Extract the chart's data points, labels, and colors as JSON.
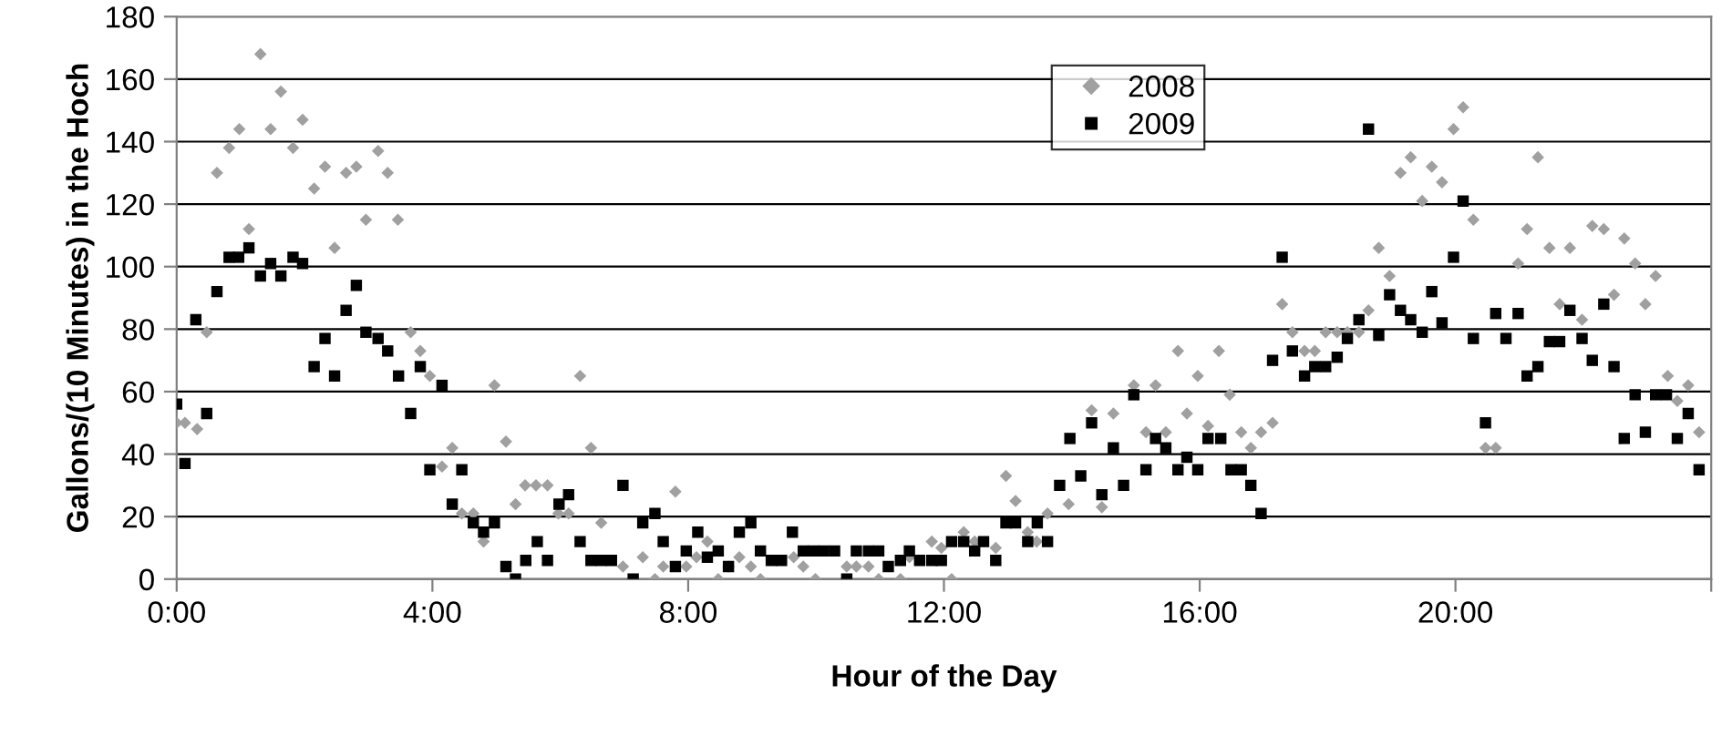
{
  "chart_data": {
    "type": "scatter",
    "xlabel": "Hour of the Day",
    "ylabel": "Gallons/(10 Minutes) in the Hoch",
    "xlim": [
      0,
      24
    ],
    "xticks": [
      {
        "value": 0,
        "label": "0:00"
      },
      {
        "value": 4,
        "label": "4:00"
      },
      {
        "value": 8,
        "label": "8:00"
      },
      {
        "value": 12,
        "label": "12:00"
      },
      {
        "value": 16,
        "label": "16:00"
      },
      {
        "value": 20,
        "label": "20:00"
      },
      {
        "value": 24,
        "label": null
      }
    ],
    "ylim": [
      0,
      180
    ],
    "yticks": [
      0,
      20,
      40,
      60,
      80,
      100,
      120,
      140,
      160,
      180
    ],
    "grid": "y",
    "legend": "top",
    "series": [
      {
        "name": "2008",
        "color": "#a0a0a0",
        "marker": "diamond",
        "x": [
          0,
          0.13,
          0.32,
          0.47,
          0.63,
          0.82,
          0.98,
          1.13,
          1.31,
          1.47,
          1.63,
          1.82,
          1.97,
          2.15,
          2.32,
          2.47,
          2.65,
          2.81,
          2.96,
          3.15,
          3.3,
          3.46,
          3.66,
          3.81,
          3.96,
          4.15,
          4.31,
          4.46,
          4.64,
          4.8,
          4.97,
          5.15,
          5.3,
          5.45,
          5.62,
          5.8,
          5.97,
          6.13,
          6.31,
          6.48,
          6.64,
          6.98,
          7.29,
          7.48,
          7.61,
          7.8,
          7.97,
          8.13,
          8.3,
          8.47,
          8.63,
          8.8,
          8.98,
          9.13,
          9.65,
          9.8,
          9.99,
          10.48,
          10.63,
          10.82,
          10.98,
          11.32,
          11.46,
          11.81,
          11.96,
          12.12,
          12.31,
          12.48,
          12.81,
          12.97,
          13.12,
          13.31,
          13.45,
          13.62,
          13.95,
          14.31,
          14.47,
          14.65,
          14.97,
          15.16,
          15.31,
          15.47,
          15.66,
          15.8,
          15.97,
          16.13,
          16.3,
          16.47,
          16.65,
          16.8,
          16.96,
          17.14,
          17.29,
          17.45,
          17.64,
          17.8,
          17.97,
          18.15,
          18.31,
          18.49,
          18.64,
          18.8,
          18.97,
          19.14,
          19.3,
          19.48,
          19.63,
          19.79,
          19.97,
          20.12,
          20.28,
          20.47,
          20.63,
          20.98,
          21.12,
          21.29,
          21.47,
          21.63,
          21.79,
          21.98,
          22.14,
          22.32,
          22.48,
          22.64,
          22.81,
          22.97,
          23.13,
          23.32,
          23.47,
          23.64,
          23.81
        ],
        "values": [
          50,
          50,
          48,
          79,
          130,
          138,
          144,
          112,
          168,
          144,
          156,
          138,
          147,
          125,
          132,
          106,
          130,
          132,
          115,
          137,
          130,
          115,
          79,
          73,
          65,
          36,
          42,
          21,
          21,
          12,
          62,
          44,
          24,
          30,
          30,
          30,
          21,
          21,
          65,
          42,
          18,
          4,
          7,
          0,
          4,
          28,
          4,
          7,
          12,
          0,
          4,
          7,
          4,
          0,
          7,
          4,
          0,
          4,
          4,
          4,
          0,
          0,
          7,
          12,
          10,
          0,
          15,
          12,
          10,
          33,
          25,
          15,
          12,
          21,
          24,
          54,
          23,
          53,
          62,
          47,
          62,
          47,
          73,
          53,
          65,
          49,
          73,
          59,
          47,
          42,
          47,
          50,
          88,
          79,
          73,
          73,
          79,
          79,
          79,
          79,
          86,
          106,
          97,
          130,
          135,
          121,
          132,
          127,
          144,
          151,
          115,
          42,
          42,
          101,
          112,
          135,
          106,
          88,
          106,
          83,
          113,
          112,
          91,
          109,
          101,
          88,
          97,
          65,
          57,
          62,
          47
        ]
      },
      {
        "name": "2009",
        "color": "#000000",
        "marker": "square",
        "x": [
          0,
          0.13,
          0.3,
          0.47,
          0.63,
          0.82,
          0.97,
          1.13,
          1.31,
          1.47,
          1.63,
          1.82,
          1.97,
          2.15,
          2.32,
          2.47,
          2.65,
          2.81,
          2.96,
          3.15,
          3.3,
          3.47,
          3.66,
          3.81,
          3.96,
          4.15,
          4.31,
          4.46,
          4.64,
          4.8,
          4.97,
          5.15,
          5.3,
          5.46,
          5.64,
          5.8,
          5.98,
          6.13,
          6.31,
          6.48,
          6.64,
          6.8,
          6.98,
          7.14,
          7.29,
          7.48,
          7.61,
          7.8,
          7.97,
          8.15,
          8.3,
          8.47,
          8.63,
          8.8,
          8.98,
          9.13,
          9.3,
          9.46,
          9.63,
          9.8,
          9.96,
          10.12,
          10.29,
          10.48,
          10.63,
          10.82,
          10.98,
          11.13,
          11.32,
          11.46,
          11.62,
          11.81,
          11.96,
          12.12,
          12.31,
          12.48,
          12.62,
          12.81,
          12.97,
          13.12,
          13.31,
          13.46,
          13.62,
          13.81,
          13.97,
          14.14,
          14.31,
          14.47,
          14.65,
          14.81,
          14.97,
          15.16,
          15.31,
          15.47,
          15.66,
          15.8,
          15.97,
          16.13,
          16.33,
          16.49,
          16.65,
          16.8,
          16.96,
          17.14,
          17.29,
          17.45,
          17.64,
          17.8,
          17.97,
          18.15,
          18.31,
          18.49,
          18.64,
          18.8,
          18.97,
          19.14,
          19.3,
          19.48,
          19.63,
          19.79,
          19.97,
          20.12,
          20.28,
          20.47,
          20.63,
          20.79,
          20.98,
          21.12,
          21.29,
          21.47,
          21.63,
          21.79,
          21.98,
          22.14,
          22.32,
          22.48,
          22.64,
          22.81,
          22.97,
          23.13,
          23.3,
          23.47,
          23.64,
          23.81
        ],
        "values": [
          56,
          37,
          83,
          53,
          92,
          103,
          103,
          106,
          97,
          101,
          97,
          103,
          101,
          68,
          77,
          65,
          86,
          94,
          79,
          77,
          73,
          65,
          53,
          68,
          35,
          62,
          24,
          35,
          18,
          15,
          18,
          4,
          0,
          6,
          12,
          6,
          24,
          27,
          12,
          6,
          6,
          6,
          30,
          0,
          18,
          21,
          12,
          4,
          9,
          15,
          7,
          9,
          4,
          15,
          18,
          9,
          6,
          6,
          15,
          9,
          9,
          9,
          9,
          0,
          9,
          9,
          9,
          4,
          6,
          9,
          6,
          6,
          6,
          12,
          12,
          9,
          12,
          6,
          18,
          18,
          12,
          18,
          12,
          30,
          45,
          33,
          50,
          27,
          42,
          30,
          59,
          35,
          45,
          42,
          35,
          39,
          35,
          45,
          45,
          35,
          35,
          30,
          21,
          70,
          103,
          73,
          65,
          68,
          68,
          71,
          77,
          83,
          144,
          78,
          91,
          86,
          83,
          79,
          92,
          82,
          103,
          121,
          77,
          50,
          85,
          77,
          85,
          65,
          68,
          76,
          76,
          86,
          77,
          70,
          88,
          68,
          45,
          59,
          47,
          59,
          59,
          45,
          53,
          35
        ]
      }
    ]
  }
}
